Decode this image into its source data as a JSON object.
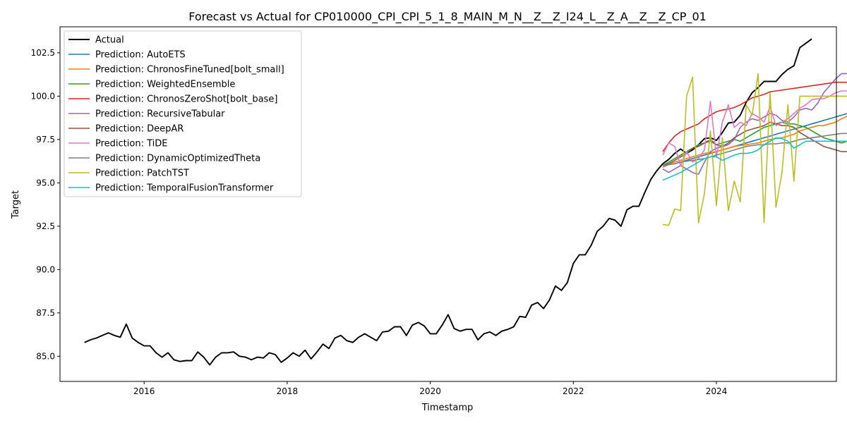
{
  "chart_data": {
    "type": "line",
    "title": "Forecast vs Actual for CP010000_CPI_CPI_5_1_8_MAIN_M_N__Z__Z_I24_L__Z_A__Z__Z_CP_01",
    "xlabel": "Timestamp",
    "ylabel": "Target",
    "x_ticks": [
      "2016",
      "2018",
      "2020",
      "2022",
      "2024"
    ],
    "y_ticks": [
      "85.0",
      "87.5",
      "90.0",
      "92.5",
      "95.0",
      "97.5",
      "100.0",
      "102.5"
    ],
    "xlim": [
      "2014-10-28",
      "2025-09-05"
    ],
    "ylim": [
      83.55,
      104.0
    ],
    "grid": false,
    "legend_position": "top-left",
    "series": [
      {
        "name": "Actual",
        "color": "#000000",
        "start": "2015-03",
        "values": [
          85.8,
          85.95,
          86.05,
          86.2,
          86.35,
          86.2,
          86.1,
          86.85,
          86.05,
          85.8,
          85.6,
          85.6,
          85.2,
          84.95,
          85.2,
          84.8,
          84.7,
          84.75,
          84.75,
          85.25,
          84.95,
          84.5,
          84.95,
          85.2,
          85.2,
          85.25,
          85.0,
          84.95,
          84.8,
          84.95,
          84.9,
          85.2,
          85.1,
          84.65,
          84.9,
          85.2,
          85.0,
          85.35,
          84.85,
          85.25,
          85.7,
          85.45,
          86.05,
          86.2,
          85.9,
          85.8,
          86.1,
          86.3,
          86.1,
          85.9,
          86.4,
          86.45,
          86.7,
          86.7,
          86.2,
          86.8,
          86.95,
          86.75,
          86.3,
          86.3,
          86.8,
          87.4,
          86.6,
          86.45,
          86.55,
          86.55,
          85.95,
          86.3,
          86.4,
          86.2,
          86.45,
          86.55,
          86.7,
          87.3,
          87.25,
          87.95,
          88.1,
          87.75,
          88.25,
          89.05,
          88.8,
          89.25,
          90.35,
          90.85,
          90.85,
          91.4,
          92.2,
          92.5,
          92.95,
          92.85,
          92.5,
          93.45,
          93.65,
          93.65,
          94.45,
          95.2,
          95.7,
          96.1,
          96.35,
          96.7,
          96.95,
          96.7,
          96.9,
          97.2,
          97.55,
          97.6,
          97.45,
          97.9,
          98.45,
          98.5,
          98.9,
          99.65,
          100.2,
          100.5,
          100.85,
          100.85,
          100.85,
          101.25,
          101.55,
          101.75,
          102.8,
          103.05,
          103.3
        ]
      },
      {
        "name": "Prediction: AutoETS",
        "color": "#1f77b4",
        "start": "2023-04",
        "values": [
          95.9,
          96.05,
          96.1,
          96.2,
          96.3,
          96.4,
          96.5,
          96.6,
          96.7,
          96.8,
          96.9,
          97.0,
          97.1,
          97.2,
          97.3,
          97.4,
          97.5,
          97.6,
          97.7,
          97.8,
          97.9,
          98.0,
          98.1,
          98.2,
          98.3,
          98.4,
          98.5,
          98.6,
          98.7,
          98.8,
          98.9,
          99.0,
          99.1
        ]
      },
      {
        "name": "Prediction: ChronosFineTuned[bolt_small]",
        "color": "#ff7f0e",
        "start": "2023-04",
        "values": [
          95.9,
          96.1,
          96.2,
          96.3,
          96.4,
          96.5,
          96.6,
          96.7,
          96.75,
          96.8,
          96.9,
          97.0,
          97.1,
          97.15,
          97.2,
          97.25,
          97.3,
          97.4,
          97.5,
          97.55,
          97.6,
          97.7,
          97.8,
          98.0,
          98.1,
          98.2,
          98.3,
          98.3,
          98.4,
          98.5,
          98.7,
          98.85,
          98.9
        ]
      },
      {
        "name": "Prediction: WeightedEnsemble",
        "color": "#2ca02c",
        "start": "2023-04",
        "values": [
          96.0,
          96.2,
          96.4,
          96.6,
          96.8,
          97.0,
          97.2,
          97.3,
          97.4,
          97.2,
          97.3,
          97.4,
          97.5,
          97.4,
          97.6,
          97.8,
          98.0,
          98.2,
          98.3,
          98.4,
          98.5,
          98.4,
          98.4,
          98.3,
          98.2,
          98.0,
          97.8,
          97.6,
          97.5,
          97.4,
          97.3,
          97.4,
          97.4
        ]
      },
      {
        "name": "Prediction: ChronosZeroShot[bolt_base]",
        "color": "#d62728",
        "start": "2023-04",
        "values": [
          96.8,
          97.3,
          97.7,
          97.95,
          98.1,
          98.25,
          98.4,
          98.7,
          98.9,
          99.1,
          99.2,
          99.25,
          99.35,
          99.5,
          99.7,
          99.9,
          100.0,
          100.1,
          100.25,
          100.3,
          100.35,
          100.4,
          100.45,
          100.5,
          100.55,
          100.6,
          100.65,
          100.7,
          100.75,
          100.8,
          100.8,
          100.8,
          100.8
        ]
      },
      {
        "name": "Prediction: RecursiveTabular",
        "color": "#9467bd",
        "start": "2023-04",
        "values": [
          95.8,
          95.6,
          95.8,
          96.0,
          95.8,
          95.6,
          95.5,
          96.2,
          96.8,
          97.0,
          97.1,
          97.2,
          97.5,
          98.2,
          98.5,
          98.7,
          98.6,
          98.8,
          99.0,
          98.9,
          98.6,
          98.5,
          98.8,
          99.2,
          99.3,
          99.2,
          99.6,
          100.2,
          100.6,
          101.0,
          101.3,
          101.3,
          101.3
        ]
      },
      {
        "name": "Prediction: DeepAR",
        "color": "#8c564b",
        "start": "2023-04",
        "values": [
          96.0,
          96.1,
          96.3,
          96.5,
          96.7,
          97.0,
          97.1,
          97.3,
          97.5,
          97.2,
          97.1,
          97.3,
          97.6,
          97.8,
          98.0,
          98.1,
          98.2,
          98.3,
          98.5,
          98.4,
          98.3,
          98.3,
          98.2,
          97.9,
          97.7,
          97.5,
          97.3,
          97.1,
          97.0,
          96.9,
          96.8,
          96.8,
          96.8
        ]
      },
      {
        "name": "Prediction: TiDE",
        "color": "#e377c2",
        "start": "2023-04",
        "values": [
          96.6,
          97.3,
          97.1,
          96.0,
          96.8,
          96.2,
          96.4,
          96.9,
          99.7,
          96.5,
          98.5,
          99.5,
          98.2,
          98.5,
          98.3,
          99.0,
          98.8,
          98.5,
          99.4,
          98.3,
          98.5,
          98.7,
          99.0,
          99.3,
          99.5,
          99.8,
          99.85,
          99.85,
          100.0,
          100.2,
          100.3,
          100.3,
          100.3
        ]
      },
      {
        "name": "Prediction: DynamicOptimizedTheta",
        "color": "#7f7f7f",
        "start": "2023-04",
        "values": [
          96.0,
          96.05,
          96.1,
          96.2,
          96.25,
          96.3,
          96.35,
          96.4,
          96.5,
          96.6,
          96.7,
          96.8,
          96.9,
          97.0,
          97.1,
          97.15,
          97.2,
          97.2,
          97.25,
          97.25,
          97.3,
          97.3,
          97.4,
          97.5,
          97.55,
          97.6,
          97.65,
          97.7,
          97.75,
          97.8,
          97.85,
          97.85,
          97.85
        ]
      },
      {
        "name": "Prediction: PatchTST",
        "color": "#bcbd22",
        "start": "2023-04",
        "values": [
          92.6,
          92.55,
          93.5,
          93.4,
          100.0,
          101.1,
          92.7,
          94.4,
          98.0,
          93.7,
          97.6,
          93.4,
          95.1,
          93.9,
          99.5,
          98.9,
          101.3,
          92.7,
          100.2,
          93.6,
          95.6,
          99.5,
          95.1,
          100.0,
          100.0,
          100.0,
          100.0,
          100.0,
          100.0,
          100.0,
          100.0,
          100.0,
          100.0
        ]
      },
      {
        "name": "Prediction: TemporalFusionTransformer",
        "color": "#17becf",
        "start": "2023-04",
        "values": [
          95.15,
          95.3,
          95.45,
          95.6,
          95.8,
          96.0,
          96.2,
          96.4,
          96.5,
          96.5,
          96.3,
          96.45,
          96.6,
          96.7,
          96.7,
          96.75,
          96.9,
          97.2,
          97.4,
          97.6,
          97.55,
          97.4,
          97.0,
          97.2,
          97.4,
          97.4,
          97.4,
          97.4,
          97.4,
          97.4,
          97.4,
          97.4,
          97.4
        ]
      }
    ]
  }
}
